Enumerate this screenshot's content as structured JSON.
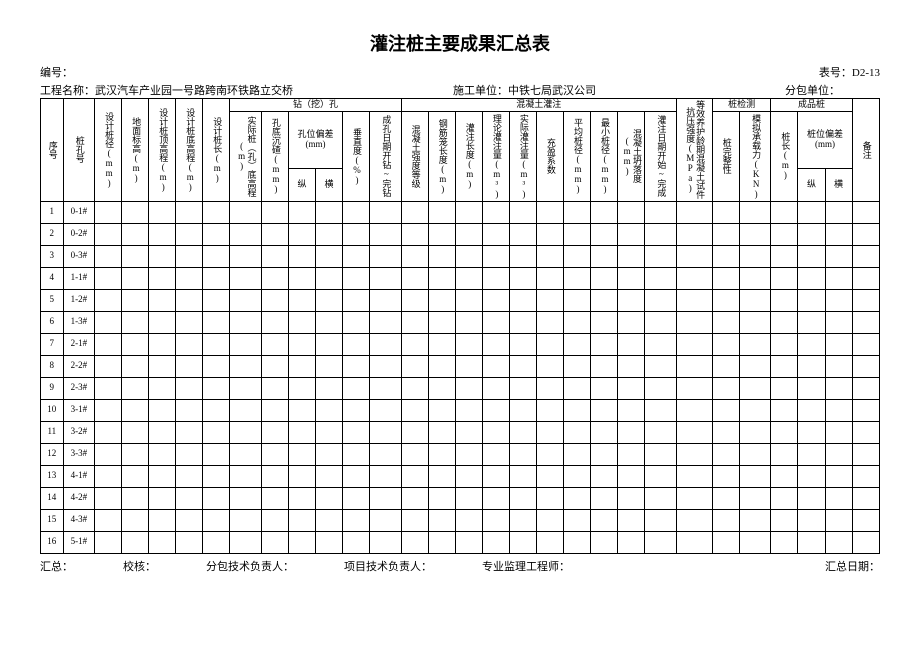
{
  "title": "灌注桩主要成果汇总表",
  "meta": {
    "bianhao_label": "编号：",
    "biaohao_label": "表号：D2-13",
    "project_label": "工程名称：",
    "project_name": "武汉汽车产业园一号路跨南环铁路立交桥",
    "shigong_label": "施工单位：",
    "shigong_name": "中铁七局武汉公司",
    "fenbao_label": "分包单位："
  },
  "group_headers": {
    "drill": "钻（挖）孔",
    "concrete": "混凝土灌注",
    "pile_test": "桩检测",
    "finished": "成品桩"
  },
  "sub_headers": {
    "hole_dev": "孔位偏差(mm)",
    "hole_dev_v": "纵",
    "hole_dev_h": "横",
    "pile_dev": "桩位偏差(mm)",
    "pile_dev_v": "纵",
    "pile_dev_h": "横"
  },
  "cols": {
    "c1": "序号",
    "c2": "桩孔号",
    "c3": "设计桩径(mm)",
    "c4": "地面标高(m)",
    "c5": "设计桩顶高程(m)",
    "c6": "设计桩底高程(m)",
    "c7": "设计桩长(m)",
    "c8": "实际桩（孔）底高程(m)",
    "c9": "孔底沉碴(mm)",
    "c12": "垂直度(%)",
    "c13": "成孔日期开钻~完钻",
    "c14": "混凝土强度等级",
    "c15": "钢筋笼长度(m)",
    "c16": "灌注长度(m)",
    "c17": "理论灌注量(m³)",
    "c18": "实际灌注量(m³)",
    "c19": "充盈系数",
    "c20": "平均桩径(mm)",
    "c21": "最小桩径(mm)",
    "c22": "混凝土坍落度(mm)",
    "c23": "灌注日期开始~完成",
    "c24": "等效养护龄期混凝土试件抗压强度(MPa)",
    "c25": "桩完整性",
    "c26": "模拟承载力(KN)",
    "c27": "桩长(m)",
    "c30": "备注"
  },
  "rows": [
    {
      "n": "1",
      "id": "0-1#"
    },
    {
      "n": "2",
      "id": "0-2#"
    },
    {
      "n": "3",
      "id": "0-3#"
    },
    {
      "n": "4",
      "id": "1-1#"
    },
    {
      "n": "5",
      "id": "1-2#"
    },
    {
      "n": "6",
      "id": "1-3#"
    },
    {
      "n": "7",
      "id": "2-1#"
    },
    {
      "n": "8",
      "id": "2-2#"
    },
    {
      "n": "9",
      "id": "2-3#"
    },
    {
      "n": "10",
      "id": "3-1#"
    },
    {
      "n": "11",
      "id": "3-2#"
    },
    {
      "n": "12",
      "id": "3-3#"
    },
    {
      "n": "13",
      "id": "4-1#"
    },
    {
      "n": "14",
      "id": "4-2#"
    },
    {
      "n": "15",
      "id": "4-3#"
    },
    {
      "n": "16",
      "id": "5-1#"
    }
  ],
  "footer": {
    "f1": "汇总：",
    "f2": "校核：",
    "f3": "分包技术负责人：",
    "f4": "项目技术负责人：",
    "f5": "专业监理工程师：",
    "f6": "汇总日期："
  }
}
